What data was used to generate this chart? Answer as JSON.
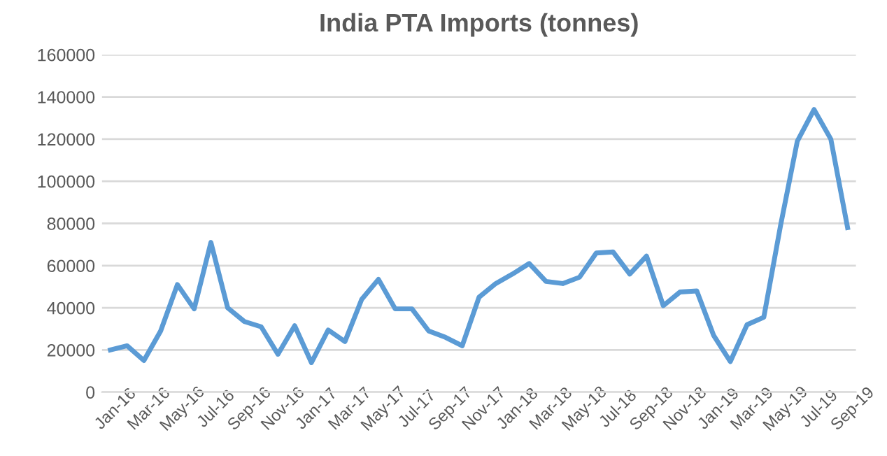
{
  "chart_data": {
    "type": "line",
    "title": "India PTA Imports (tonnes)",
    "categories": [
      "Jan-16",
      null,
      "Mar-16",
      null,
      "May-16",
      null,
      "Jul-16",
      null,
      "Sep-16",
      null,
      "Nov-16",
      null,
      "Jan-17",
      null,
      "Mar-17",
      null,
      "May-17",
      null,
      "Jul-17",
      null,
      "Sep-17",
      null,
      "Nov-17",
      null,
      "Jan-18",
      null,
      "Mar-18",
      null,
      "May-18",
      null,
      "Jul-18",
      null,
      "Sep-18",
      null,
      "Nov-18",
      null,
      "Jan-19",
      null,
      "Mar-19",
      null,
      "May-19",
      null,
      "Jul-19",
      null,
      "Sep-19"
    ],
    "series": [
      {
        "color": "#5b9bd5",
        "values": [
          20000,
          22000,
          15000,
          29000,
          51000,
          39500,
          71000,
          40000,
          33500,
          31000,
          18000,
          31500,
          14000,
          29500,
          24000,
          44000,
          53500,
          39500,
          39500,
          29000,
          26000,
          22000,
          45000,
          51500,
          56000,
          61000,
          52500,
          51500,
          54500,
          66000,
          66500,
          56000,
          64500,
          41000,
          47500,
          48000,
          27000,
          14500,
          32000,
          35500,
          79000,
          119000,
          134000,
          120000,
          78000
        ]
      }
    ],
    "ylim": [
      0,
      160000
    ],
    "yticks": [
      0,
      20000,
      40000,
      60000,
      80000,
      100000,
      120000,
      140000,
      160000
    ],
    "grid": "y",
    "legend": false,
    "marker": "none",
    "line_style": "solid"
  }
}
